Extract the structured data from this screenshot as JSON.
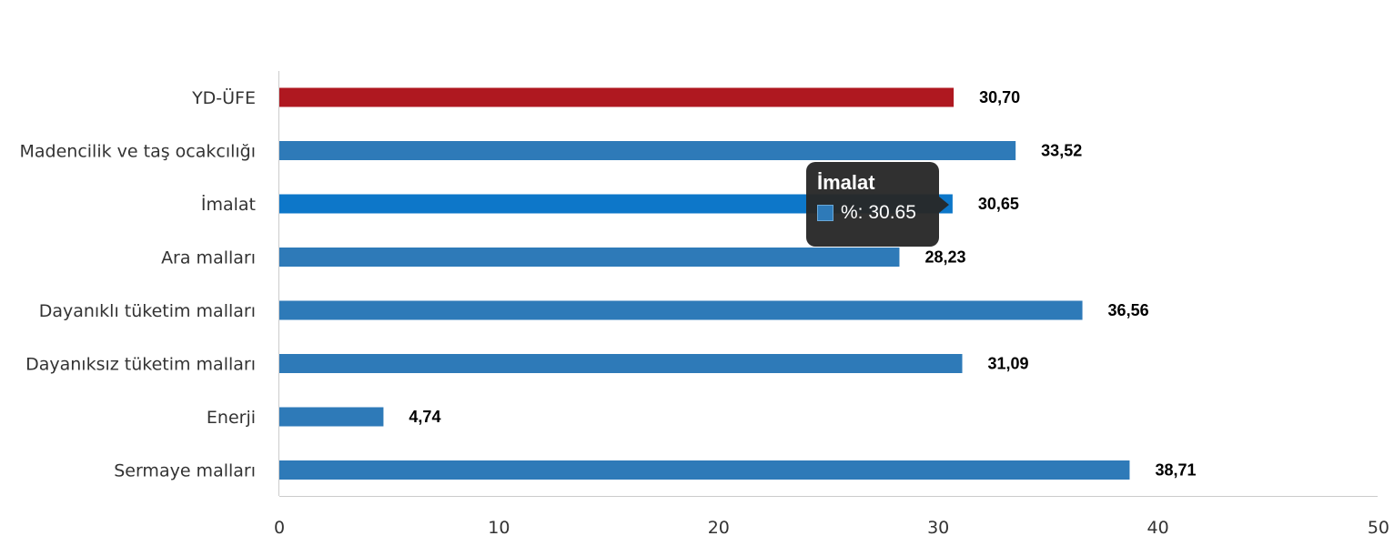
{
  "chart_data": {
    "type": "bar",
    "orientation": "horizontal",
    "categories": [
      "YD-ÜFE",
      "Madencilik ve taş ocakcılığı",
      "İmalat",
      "Ara malları",
      "Dayanıklı tüketim malları",
      "Dayanıksız tüketim malları",
      "Enerji",
      "Sermaye malları"
    ],
    "values": [
      30.7,
      33.52,
      30.65,
      28.23,
      36.56,
      31.09,
      4.74,
      38.71
    ],
    "value_labels": [
      "30,70",
      "33,52",
      "30,65",
      "28,23",
      "36,56",
      "31,09",
      "4,74",
      "38,71"
    ],
    "bar_colors": [
      "#af1820",
      "#2e7ab8",
      "#0d77c9",
      "#2e7ab8",
      "#2e7ab8",
      "#2e7ab8",
      "#2e7ab8",
      "#2e7ab8"
    ],
    "xlim": [
      0,
      50
    ],
    "xticks": [
      "0",
      "10",
      "20",
      "30",
      "40",
      "50"
    ],
    "xtick_values": [
      0,
      10,
      20,
      30,
      40,
      50
    ],
    "grid": false,
    "legend": "none",
    "highlighted_category": "İmalat"
  },
  "tooltip": {
    "title": "İmalat",
    "text": "%: 30.65",
    "swatch_color": "#2e7ab8"
  }
}
